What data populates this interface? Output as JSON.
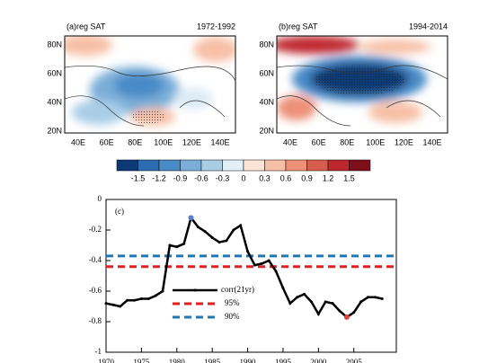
{
  "chart_data": [
    {
      "type": "map",
      "title": "(a)reg SAT",
      "subtitle": "1972-1992",
      "lat_labels": [
        "80N",
        "60N",
        "40N",
        "20N"
      ],
      "lon_labels": [
        "40E",
        "60E",
        "80E",
        "100E",
        "120E",
        "140E"
      ]
    },
    {
      "type": "map",
      "title": "(b)reg SAT",
      "subtitle": "1994-2014",
      "lat_labels": [
        "80N",
        "60N",
        "40N",
        "20N"
      ],
      "lon_labels": [
        "40E",
        "60E",
        "80E",
        "100E",
        "120E",
        "140E"
      ]
    },
    {
      "type": "colorbar",
      "levels": [
        -1.5,
        -1.2,
        -0.9,
        -0.6,
        -0.3,
        0,
        0.3,
        0.6,
        0.9,
        1.2,
        1.5
      ],
      "colors": [
        "#0b3a74",
        "#2c6db2",
        "#4a8ac7",
        "#7aaed8",
        "#a9cde6",
        "#e3eff7",
        "#fbe3d6",
        "#f7c0a6",
        "#ee9078",
        "#da5e4e",
        "#c0272d",
        "#7f0e1e"
      ]
    },
    {
      "type": "line",
      "annotation": "(c)",
      "x": [
        1970,
        1971,
        1972,
        1973,
        1974,
        1975,
        1976,
        1977,
        1978,
        1979,
        1980,
        1981,
        1982,
        1983,
        1984,
        1985,
        1986,
        1987,
        1988,
        1989,
        1990,
        1991,
        1992,
        1993,
        1994,
        1995,
        1996,
        1997,
        1998,
        1999,
        2000,
        2001,
        2002,
        2003,
        2004,
        2005,
        2006,
        2007,
        2008,
        2009
      ],
      "series": [
        {
          "name": "corr(21yr)",
          "color": "#000000",
          "values": [
            -0.68,
            -0.69,
            -0.7,
            -0.66,
            -0.66,
            -0.65,
            -0.65,
            -0.63,
            -0.6,
            -0.3,
            -0.31,
            -0.29,
            -0.12,
            -0.18,
            -0.21,
            -0.25,
            -0.28,
            -0.27,
            -0.2,
            -0.17,
            -0.34,
            -0.43,
            -0.42,
            -0.4,
            -0.47,
            -0.58,
            -0.68,
            -0.64,
            -0.62,
            -0.67,
            -0.75,
            -0.67,
            -0.68,
            -0.73,
            -0.77,
            -0.74,
            -0.67,
            -0.64,
            -0.64,
            -0.65
          ]
        }
      ],
      "reference_lines": [
        {
          "name": "95%",
          "value": -0.44,
          "color": "#e02020"
        },
        {
          "name": "90%",
          "value": -0.37,
          "color": "#1f77b4"
        }
      ],
      "highlight_points": [
        {
          "index": 12,
          "color": "#5b7fc7"
        },
        {
          "index": 34,
          "color": "#e0403a"
        }
      ],
      "xlim": [
        1970,
        2011
      ],
      "ylim": [
        -1,
        0
      ],
      "xticks": [
        1970,
        1975,
        1980,
        1985,
        1990,
        1995,
        2000,
        2005
      ],
      "yticks": [
        0,
        -0.2,
        -0.4,
        -0.6,
        -0.8,
        -1
      ]
    }
  ]
}
